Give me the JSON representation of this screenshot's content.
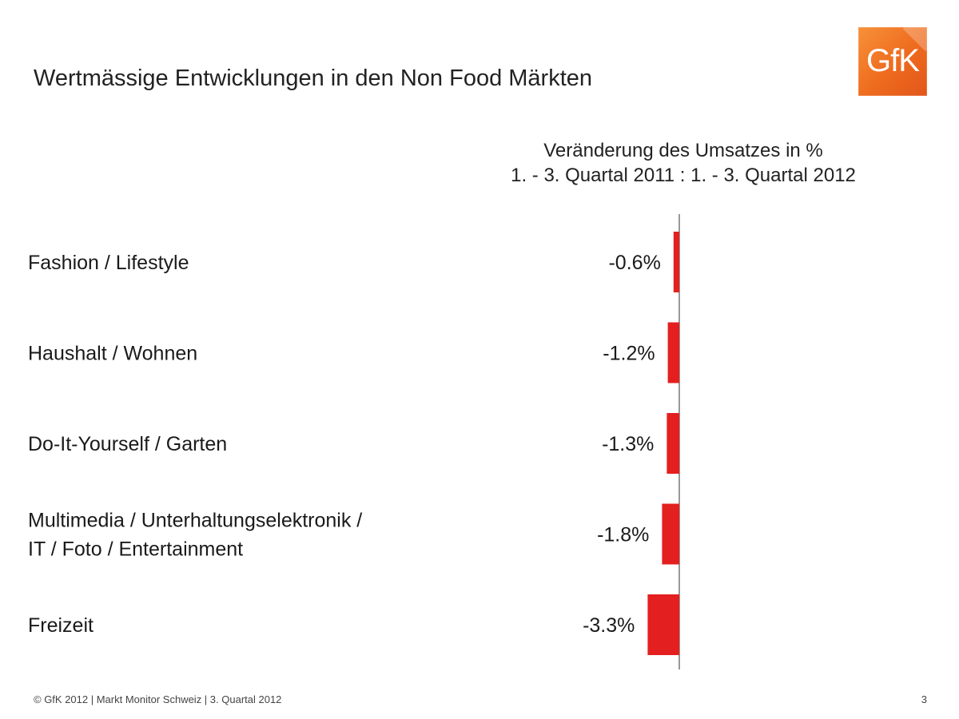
{
  "slide": {
    "title": "Wertmässige Entwicklungen in den Non Food Märkten",
    "logo_text": "GfK",
    "footer": "© GfK 2012 | Markt Monitor Schweiz | 3. Quartal 2012",
    "page_number": "3"
  },
  "colors": {
    "bar": "#e3201f",
    "axis": "#777777",
    "logo": "#ee6b1e"
  },
  "chart_data": {
    "type": "bar",
    "orientation": "horizontal",
    "title": "Veränderung des Umsatzes in %",
    "subtitle": "1. - 3. Quartal 2011 : 1. - 3. Quartal 2012",
    "categories": [
      [
        "Fashion / Lifestyle"
      ],
      [
        "Haushalt / Wohnen"
      ],
      [
        "Do-It-Yourself / Garten"
      ],
      [
        "Multimedia / Unterhaltungselektronik /",
        "IT / Foto / Entertainment"
      ],
      [
        "Freizeit"
      ]
    ],
    "values": [
      -0.6,
      -1.2,
      -1.3,
      -1.8,
      -3.3
    ],
    "data_labels": [
      "-0.6%",
      "-1.2%",
      "-1.3%",
      "-1.8%",
      "-3.3%"
    ],
    "unit": "%",
    "grid": false,
    "legend": "none"
  }
}
